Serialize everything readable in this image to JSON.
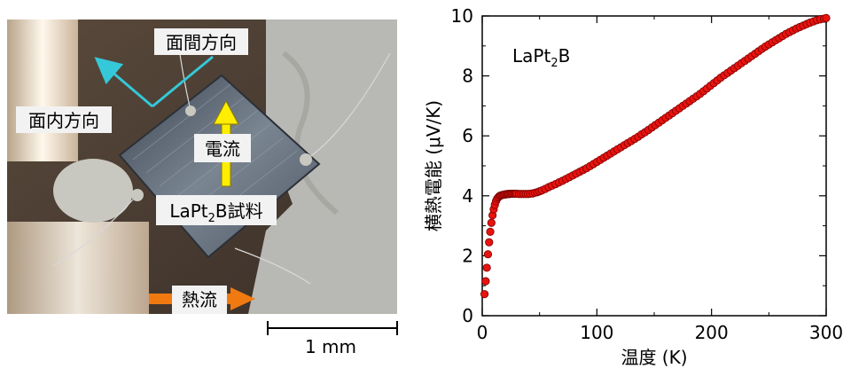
{
  "photo": {
    "labels": {
      "interplane": "面間方向",
      "inplane": "面内方向",
      "current": "電流",
      "sample_prefix": "LaPt",
      "sample_sub": "2",
      "sample_suffix": "B試料",
      "heatflow": "熱流"
    },
    "scalebar_label": "1 mm",
    "colors": {
      "interplane_arrow": "#35c8d8",
      "current_arrow": "#ffee00",
      "heatflow_arrow": "#f07a10"
    }
  },
  "chart_data": {
    "type": "scatter",
    "annotation": {
      "prefix": "LaPt",
      "sub": "2",
      "suffix": "B"
    },
    "xlabel": "温度 (K)",
    "ylabel": "横熱電能 (μV/K)",
    "xlim": [
      0,
      300
    ],
    "ylim": [
      0,
      10
    ],
    "xticks": [
      0,
      100,
      200,
      300
    ],
    "yticks": [
      0,
      2,
      4,
      6,
      8,
      10
    ],
    "marker_color": "#e8130f",
    "marker_edge": "#7a0000",
    "series": [
      {
        "x": [
          2,
          3,
          4,
          5,
          6,
          7,
          8,
          9,
          10,
          11,
          12,
          13,
          14,
          15,
          16,
          17,
          18,
          19,
          20,
          21,
          22,
          23,
          24,
          25,
          26,
          27,
          28,
          29,
          30,
          32,
          34,
          36,
          38,
          40,
          42,
          44,
          46,
          48,
          50,
          52,
          55,
          58,
          61,
          64,
          67,
          70,
          73,
          76,
          79,
          82,
          85,
          88,
          91,
          94,
          97,
          100,
          103,
          106,
          109,
          112,
          115,
          118,
          121,
          124,
          127,
          130,
          133,
          136,
          139,
          142,
          145,
          148,
          151,
          154,
          157,
          160,
          163,
          166,
          169,
          172,
          175,
          178,
          181,
          184,
          187,
          190,
          193,
          196,
          199,
          202,
          205,
          208,
          211,
          214,
          217,
          220,
          223,
          226,
          229,
          232,
          235,
          238,
          241,
          244,
          247,
          250,
          253,
          256,
          259,
          262,
          265,
          268,
          271,
          274,
          277,
          280,
          283,
          286,
          289,
          292,
          295,
          298,
          300
        ],
        "y": [
          0.72,
          1.15,
          1.6,
          2.05,
          2.45,
          2.8,
          3.1,
          3.35,
          3.55,
          3.7,
          3.82,
          3.9,
          3.95,
          3.99,
          4.01,
          4.02,
          4.03,
          4.04,
          4.05,
          4.05,
          4.06,
          4.06,
          4.06,
          4.07,
          4.07,
          4.07,
          4.07,
          4.07,
          4.07,
          4.06,
          4.06,
          4.06,
          4.06,
          4.06,
          4.07,
          4.08,
          4.1,
          4.12,
          4.15,
          4.18,
          4.23,
          4.29,
          4.34,
          4.39,
          4.45,
          4.5,
          4.56,
          4.62,
          4.68,
          4.74,
          4.8,
          4.86,
          4.92,
          4.99,
          5.06,
          5.13,
          5.2,
          5.27,
          5.34,
          5.41,
          5.48,
          5.55,
          5.62,
          5.69,
          5.76,
          5.83,
          5.9,
          5.97,
          6.05,
          6.12,
          6.2,
          6.28,
          6.36,
          6.44,
          6.52,
          6.6,
          6.68,
          6.76,
          6.84,
          6.92,
          7.0,
          7.08,
          7.16,
          7.24,
          7.32,
          7.4,
          7.49,
          7.58,
          7.67,
          7.76,
          7.85,
          7.94,
          8.02,
          8.1,
          8.18,
          8.26,
          8.34,
          8.42,
          8.5,
          8.58,
          8.66,
          8.74,
          8.82,
          8.9,
          8.98,
          9.05,
          9.12,
          9.19,
          9.26,
          9.33,
          9.4,
          9.46,
          9.52,
          9.58,
          9.63,
          9.68,
          9.73,
          9.78,
          9.82,
          9.86,
          9.89,
          9.91,
          9.93
        ]
      }
    ]
  }
}
